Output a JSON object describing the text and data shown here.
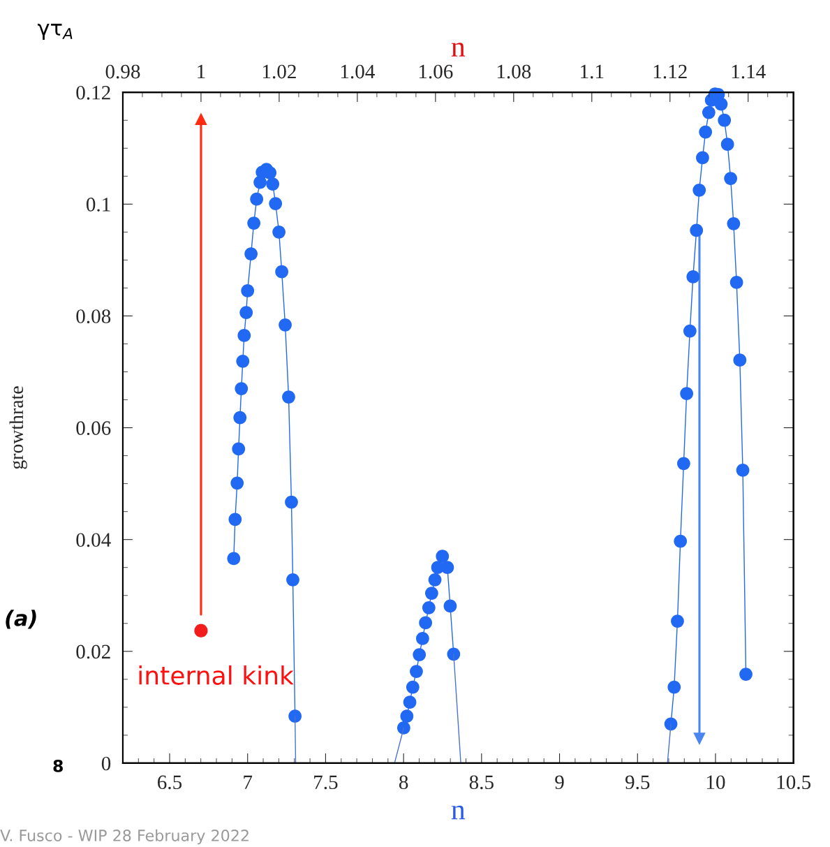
{
  "chart_data": {
    "type": "scatter",
    "ylabel": "growthrate",
    "xlabel": "n",
    "x2label": "n",
    "xlim": [
      6.2,
      10.5
    ],
    "xticks": [
      6.5,
      7,
      7.5,
      8,
      8.5,
      9,
      9.5,
      10,
      10.5
    ],
    "x2lim": [
      0.98,
      1.1516
    ],
    "x2ticks": [
      0.98,
      1,
      1.02,
      1.04,
      1.06,
      1.08,
      1.1,
      1.12,
      1.14
    ],
    "ylim": [
      0,
      0.12
    ],
    "yticks": [
      0,
      0.02,
      0.04,
      0.06,
      0.08,
      0.1,
      0.12
    ],
    "grid": false,
    "series": [
      {
        "type": "line",
        "color": "#2168f2",
        "marker": "circle",
        "x": [
          6.911,
          6.92,
          6.933,
          6.942,
          6.951,
          6.96,
          6.969,
          6.978,
          6.991,
          7.0,
          7.022,
          7.04,
          7.058,
          7.08,
          7.094,
          7.121,
          7.143,
          7.161,
          7.179,
          7.201,
          7.219,
          7.241,
          7.263,
          7.281,
          7.29,
          7.304,
          7.6,
          8.001,
          8.021,
          8.04,
          8.059,
          8.082,
          8.101,
          8.122,
          8.141,
          8.162,
          8.18,
          8.201,
          8.219,
          8.249,
          8.281,
          8.299,
          8.321,
          9.0,
          9.714,
          9.735,
          9.756,
          9.775,
          9.796,
          9.815,
          9.836,
          9.856,
          9.878,
          9.896,
          9.917,
          9.936,
          9.957,
          9.974,
          9.997,
          10.018,
          10.036,
          10.057,
          10.077,
          10.097,
          10.116,
          10.135,
          10.156,
          10.175,
          10.195
        ],
        "values": [
          0.0366,
          0.0436,
          0.0501,
          0.0562,
          0.0618,
          0.067,
          0.0719,
          0.0765,
          0.0806,
          0.0845,
          0.0911,
          0.0966,
          0.1009,
          0.1039,
          0.1057,
          0.1062,
          0.1056,
          0.1036,
          0.1001,
          0.095,
          0.0879,
          0.0784,
          0.0655,
          0.0467,
          0.0328,
          0.0084,
          null,
          0.0063,
          0.0084,
          0.0109,
          0.0136,
          0.0164,
          0.0194,
          0.0223,
          0.0251,
          0.0278,
          0.0304,
          0.0328,
          0.035,
          0.037,
          0.035,
          0.0281,
          0.0195,
          null,
          0.007,
          0.0136,
          0.0254,
          0.0397,
          0.0536,
          0.0661,
          0.0773,
          0.087,
          0.0953,
          0.1025,
          0.1083,
          0.1129,
          0.1164,
          0.1186,
          0.1197,
          0.1196,
          0.1179,
          0.115,
          0.1107,
          0.1046,
          0.0965,
          0.086,
          0.0721,
          0.0524,
          0.0159
        ]
      },
      {
        "type": "line",
        "color": "#4a72d0",
        "marker": "none",
        "x": [
          7.304,
          7.308,
          7.6,
          7.942,
          8.001,
          8.2,
          8.321,
          8.367,
          9.0,
          9.692,
          9.714
        ],
        "values": [
          0.0084,
          0,
          null,
          0,
          0.0063,
          null,
          0.0195,
          0,
          null,
          0,
          0.007
        ]
      },
      {
        "type": "line",
        "axis": "x2",
        "color": "#ff2a10",
        "marker": "triangle",
        "x": [
          1.0,
          1.0
        ],
        "values": [
          0.0266,
          0.1152
        ]
      },
      {
        "type": "line",
        "color": "#4a86f0",
        "marker": "triangle",
        "x": [
          9.897,
          9.897
        ],
        "values": [
          0.0959,
          0.0044
        ]
      },
      {
        "axis": "x2",
        "color": "#f21c1c",
        "marker": "circle",
        "x": [
          1.0
        ],
        "values": [
          0.0237
        ]
      }
    ],
    "annotations": [
      "γτ$_{A}$",
      "internal kink",
      "V. Fusco - WIP 28 February 2022",
      "(a)",
      "8"
    ]
  }
}
